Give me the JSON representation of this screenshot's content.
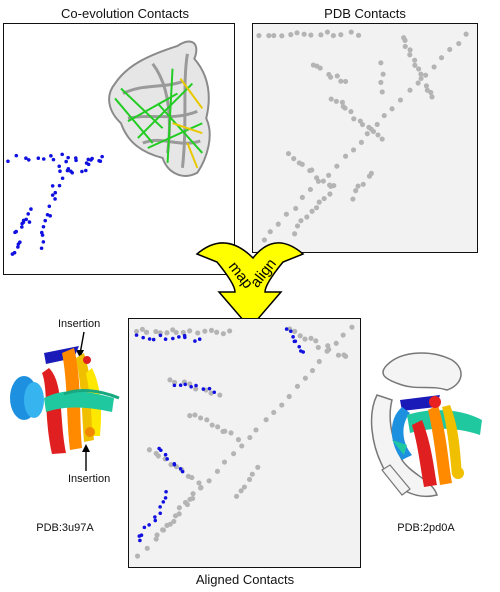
{
  "titles": {
    "coevolution": "Co-evolution Contacts",
    "pdb": "PDB Contacts",
    "aligned": "Aligned Contacts"
  },
  "arrow": {
    "left_label": "map",
    "right_label": "align"
  },
  "structures": {
    "left_id": "PDB:3u97A",
    "right_id": "PDB:2pd0A",
    "insertion_top": "Insertion",
    "insertion_bottom": "Insertion"
  },
  "colors": {
    "coevolution_dots": "#1010e0",
    "pdb_dots": "#b4b4b4",
    "panel_gray": "#f2f2f2",
    "arrow_fill": "#ffff00",
    "contact_green": "#22cc22",
    "contact_yellow": "#e8c800"
  }
}
